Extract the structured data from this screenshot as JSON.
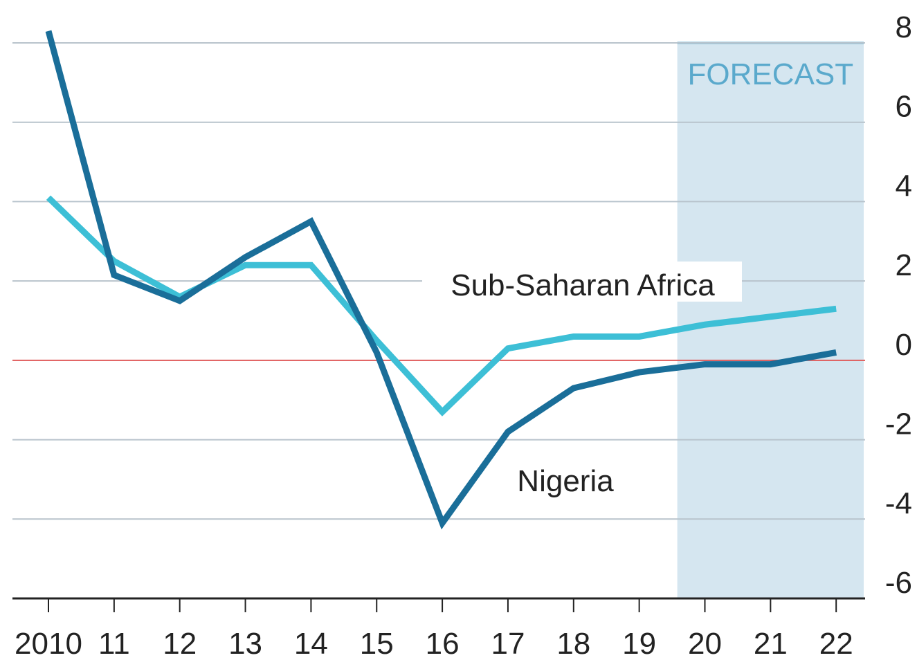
{
  "chart_data": {
    "type": "line",
    "categories": [
      "2010",
      "11",
      "12",
      "13",
      "14",
      "15",
      "16",
      "17",
      "18",
      "19",
      "20",
      "21",
      "22"
    ],
    "series": [
      {
        "name": "Sub-Saharan Africa",
        "color": "#3dbfd6",
        "values": [
          4.1,
          2.5,
          1.6,
          2.4,
          2.4,
          0.5,
          -1.3,
          0.3,
          0.6,
          0.6,
          0.9,
          1.1,
          1.3
        ]
      },
      {
        "name": "Nigeria",
        "color": "#1a6e99",
        "values": [
          8.3,
          2.15,
          1.5,
          2.6,
          3.5,
          0.2,
          -4.1,
          -1.8,
          -0.7,
          -0.3,
          -0.1,
          -0.1,
          0.2
        ]
      }
    ],
    "ylim": [
      -6,
      8
    ],
    "yticks": [
      8,
      6,
      4,
      2,
      0,
      -2,
      -4,
      -6
    ],
    "grid": true,
    "zero_line_color": "#e05a5a",
    "forecast": {
      "label": "FORECAST",
      "from": "20",
      "to": "22",
      "color": "#d5e6f0",
      "label_color": "#5aa9cc"
    }
  }
}
